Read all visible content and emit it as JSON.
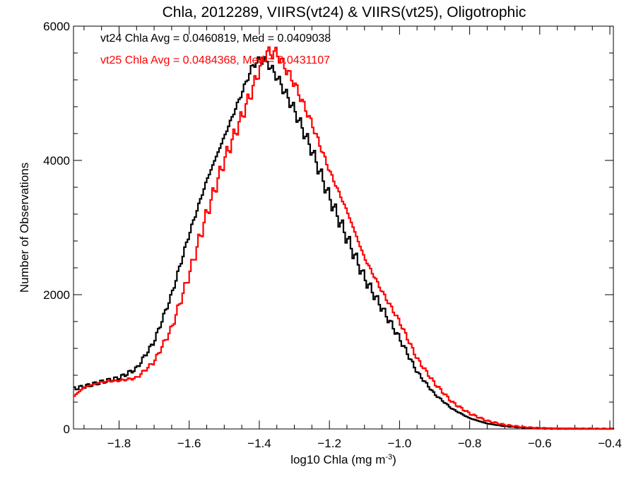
{
  "chart_data": {
    "type": "line",
    "step": true,
    "title": "Chla, 2012289, VIIRS(vt24) & VIIRS(vt25), Oligotrophic",
    "xlabel": "log10 Chla (mg m",
    "xlabel_sup": "-3",
    "xlabel_end": ")",
    "ylabel": "Number of Observations",
    "xlim": [
      -1.93,
      -0.39
    ],
    "ylim": [
      0,
      6000
    ],
    "grid": false,
    "x_ticks": [
      -1.8,
      -1.6,
      -1.4,
      -1.2,
      -1.0,
      -0.8,
      -0.6,
      -0.4
    ],
    "x_tick_labels": [
      "−1.8",
      "−1.6",
      "−1.4",
      "−1.2",
      "−1.0",
      "−0.8",
      "−0.6",
      "−0.4"
    ],
    "y_ticks": [
      0,
      2000,
      4000,
      6000
    ],
    "y_tick_labels": [
      "0",
      "2000",
      "4000",
      "6000"
    ],
    "annotations": [
      {
        "text": "vt24 Chla Avg = 0.0460819, Med = 0.0409038",
        "color": "#000000"
      },
      {
        "text": "vt25 Chla Avg = 0.0484368, Med = 0.0431107",
        "color": "#ff0000"
      }
    ],
    "series": [
      {
        "color": "#000000",
        "x": [
          -1.93,
          -1.9,
          -1.85,
          -1.8,
          -1.75,
          -1.7,
          -1.65,
          -1.6,
          -1.55,
          -1.5,
          -1.45,
          -1.42,
          -1.4,
          -1.38,
          -1.35,
          -1.3,
          -1.25,
          -1.2,
          -1.15,
          -1.1,
          -1.05,
          -1.0,
          -0.95,
          -0.9,
          -0.85,
          -0.8,
          -0.75,
          -0.7,
          -0.65,
          -0.6,
          -0.55,
          -0.5,
          -0.45,
          -0.4
        ],
        "values": [
          600,
          630,
          700,
          760,
          900,
          1300,
          2000,
          2900,
          3700,
          4350,
          5000,
          5400,
          5500,
          5480,
          5250,
          4750,
          4150,
          3450,
          2850,
          2250,
          1800,
          1350,
          850,
          520,
          300,
          160,
          80,
          40,
          18,
          8,
          4,
          2,
          1,
          0
        ]
      },
      {
        "color": "#ff0000",
        "x": [
          -1.93,
          -1.9,
          -1.85,
          -1.8,
          -1.75,
          -1.7,
          -1.65,
          -1.6,
          -1.55,
          -1.5,
          -1.45,
          -1.42,
          -1.4,
          -1.38,
          -1.35,
          -1.3,
          -1.25,
          -1.2,
          -1.15,
          -1.1,
          -1.05,
          -1.0,
          -0.95,
          -0.9,
          -0.85,
          -0.8,
          -0.75,
          -0.7,
          -0.65,
          -0.6,
          -0.55,
          -0.5,
          -0.45,
          -0.4
        ],
        "values": [
          480,
          620,
          700,
          720,
          760,
          1000,
          1500,
          2300,
          3200,
          4000,
          4650,
          5050,
          5350,
          5600,
          5600,
          5150,
          4550,
          3850,
          3250,
          2550,
          2050,
          1600,
          1050,
          680,
          400,
          230,
          120,
          60,
          28,
          12,
          6,
          3,
          1,
          0
        ]
      }
    ]
  }
}
